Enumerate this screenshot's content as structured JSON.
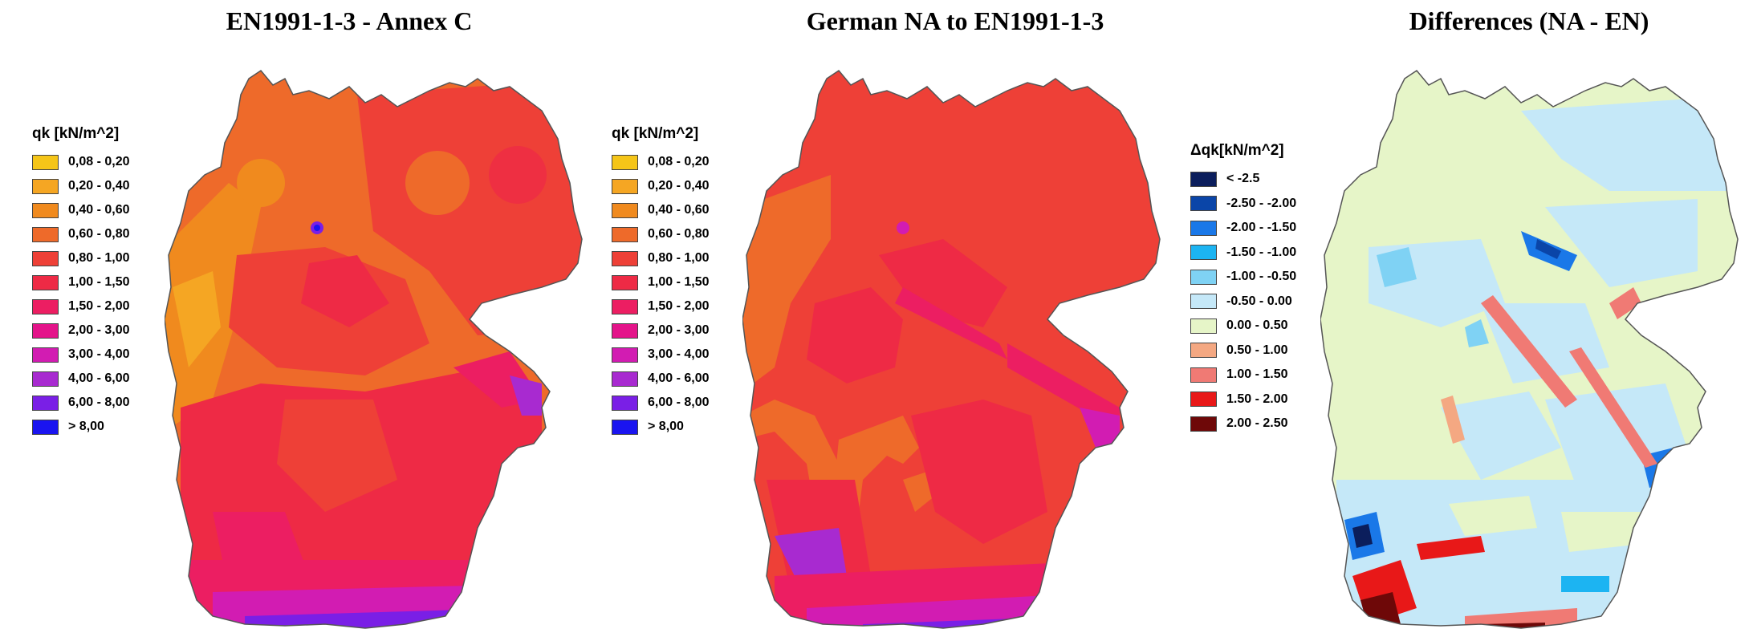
{
  "panels": [
    {
      "title": "EN1991-1-3 - Annex C",
      "legend": {
        "title": "qk [kN/m^2]",
        "items": [
          {
            "label": "0,08 - 0,20",
            "color": "#f5c518"
          },
          {
            "label": "0,20 - 0,40",
            "color": "#f5a623"
          },
          {
            "label": "0,40 - 0,60",
            "color": "#f08a1e"
          },
          {
            "label": "0,60 - 0,80",
            "color": "#ee6a2a"
          },
          {
            "label": "0,80 - 1,00",
            "color": "#ee4037"
          },
          {
            "label": "1,00 - 1,50",
            "color": "#ee2a45"
          },
          {
            "label": "1,50 - 2,00",
            "color": "#ec1e62"
          },
          {
            "label": "2,00 - 3,00",
            "color": "#e4148a"
          },
          {
            "label": "3,00 - 4,00",
            "color": "#d21cb2"
          },
          {
            "label": "4,00 - 6,00",
            "color": "#a82ad0"
          },
          {
            "label": "6,00 - 8,00",
            "color": "#7a1fe6"
          },
          {
            "label": "> 8,00",
            "color": "#1a14f0"
          }
        ]
      }
    },
    {
      "title": "German NA to EN1991-1-3",
      "legend": {
        "title": "qk [kN/m^2]",
        "items": [
          {
            "label": "0,08 - 0,20",
            "color": "#f5c518"
          },
          {
            "label": "0,20 - 0,40",
            "color": "#f5a623"
          },
          {
            "label": "0,40 - 0,60",
            "color": "#f08a1e"
          },
          {
            "label": "0,60 - 0,80",
            "color": "#ee6a2a"
          },
          {
            "label": "0,80 - 1,00",
            "color": "#ee4037"
          },
          {
            "label": "1,00 - 1,50",
            "color": "#ee2a45"
          },
          {
            "label": "1,50 - 2,00",
            "color": "#ec1e62"
          },
          {
            "label": "2,00 - 3,00",
            "color": "#e4148a"
          },
          {
            "label": "3,00 - 4,00",
            "color": "#d21cb2"
          },
          {
            "label": "4,00 - 6,00",
            "color": "#a82ad0"
          },
          {
            "label": "6,00 - 8,00",
            "color": "#7a1fe6"
          },
          {
            "label": "> 8,00",
            "color": "#1a14f0"
          }
        ]
      }
    },
    {
      "title": "Differences (NA - EN)",
      "legend": {
        "title": "Δqk[kN/m^2]",
        "items": [
          {
            "label": "< -2.5",
            "color": "#0b1e5c"
          },
          {
            "label": "-2.50 - -2.00",
            "color": "#0a45a8"
          },
          {
            "label": "-2.00 - -1.50",
            "color": "#1a78e8"
          },
          {
            "label": "-1.50 - -1.00",
            "color": "#1cb4f2"
          },
          {
            "label": "-1.00 - -0.50",
            "color": "#7fd2f4"
          },
          {
            "label": "-0.50 - 0.00",
            "color": "#c5e8f8"
          },
          {
            "label": "0.00 - 0.50",
            "color": "#e6f5c8"
          },
          {
            "label": "0.50 - 1.00",
            "color": "#f4a882"
          },
          {
            "label": "1.00 - 1.50",
            "color": "#f07a74"
          },
          {
            "label": "1.50 - 2.00",
            "color": "#e81818"
          },
          {
            "label": "2.00 - 2.50",
            "color": "#6e0808"
          }
        ]
      }
    }
  ]
}
